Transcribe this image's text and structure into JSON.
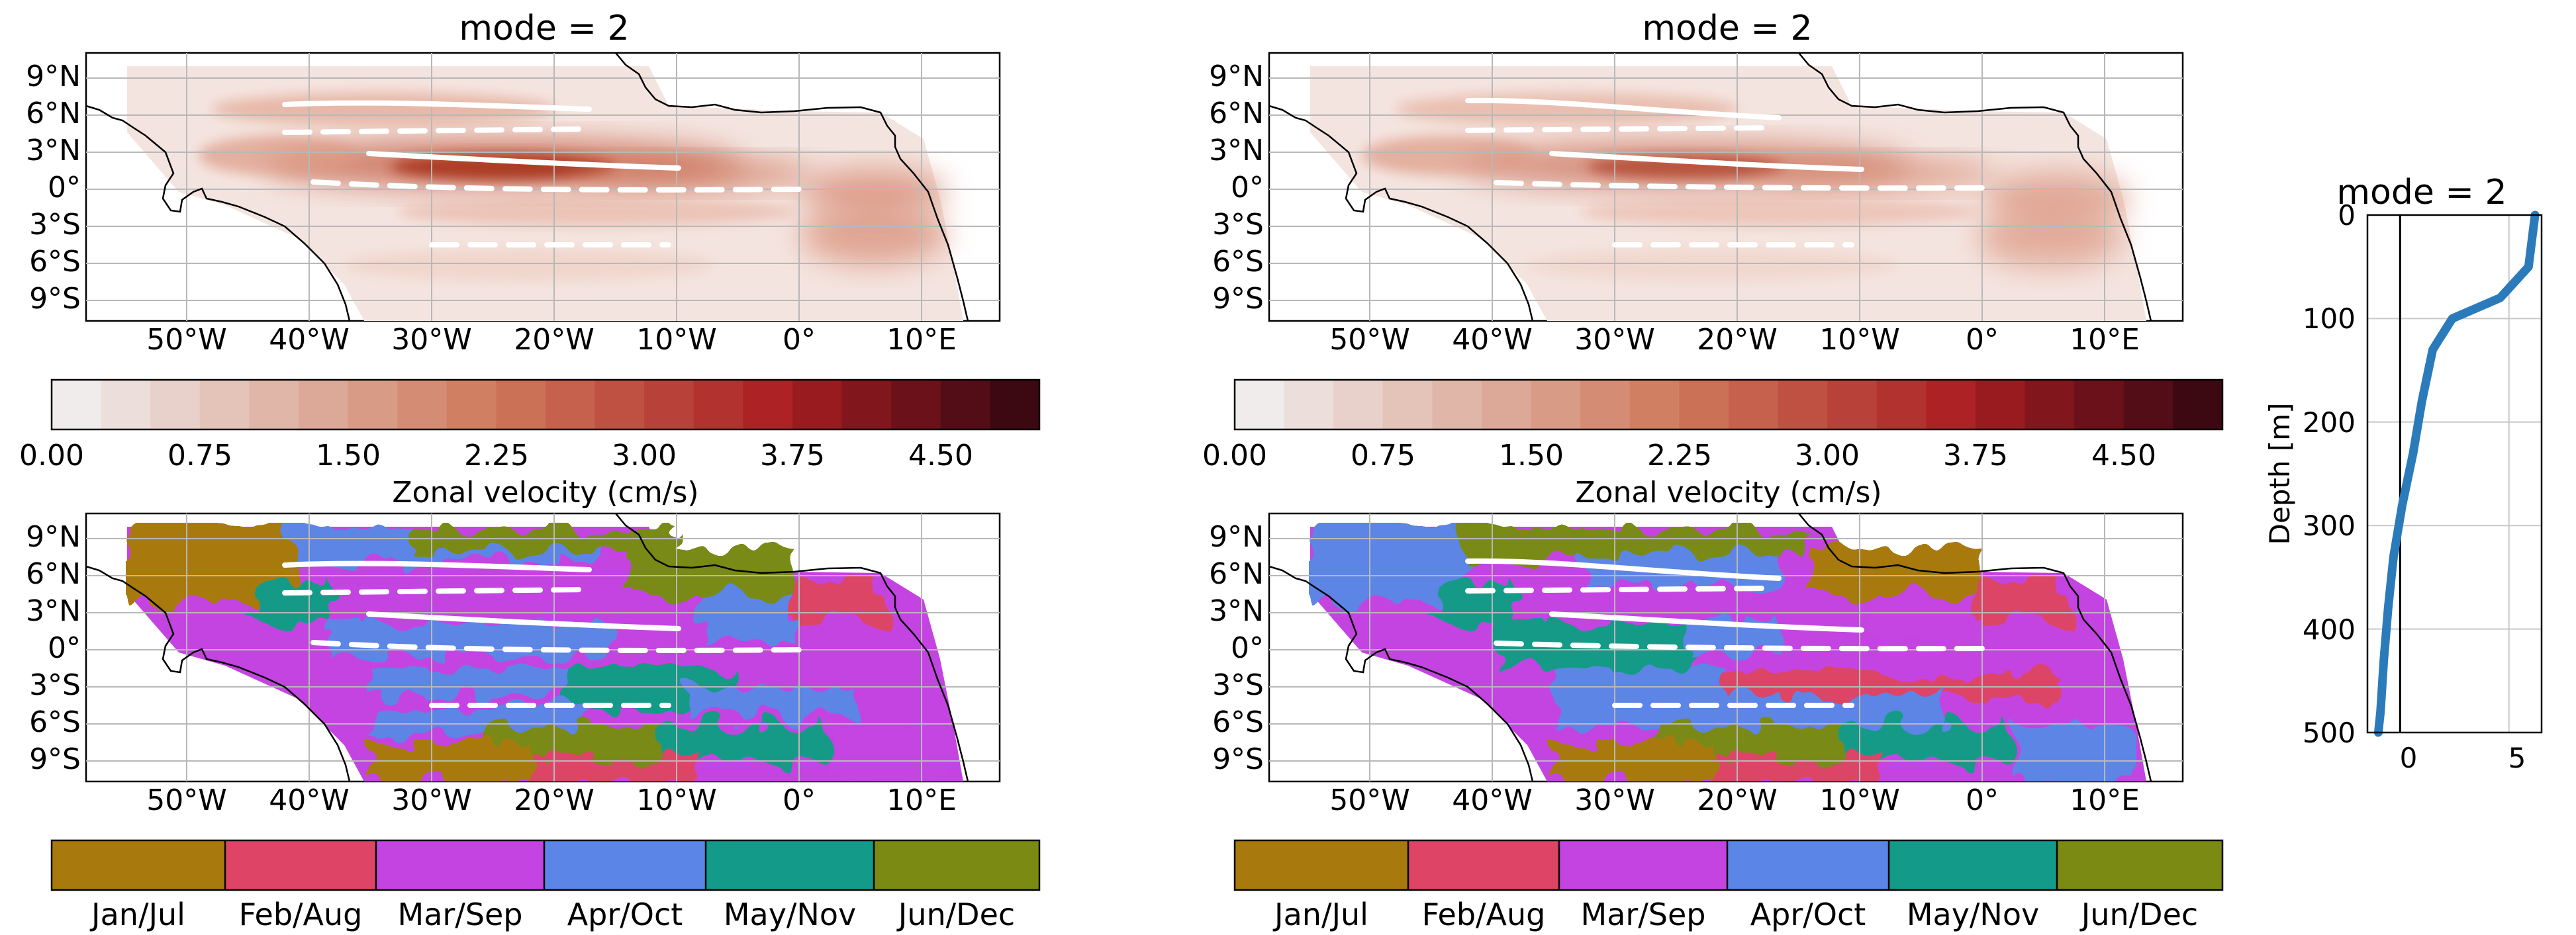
{
  "figure": {
    "map_panels": [
      {
        "title": "mode = 2",
        "kind": "amplitude"
      },
      {
        "title": "",
        "kind": "phase"
      },
      {
        "title": "mode = 2",
        "kind": "amplitude"
      },
      {
        "title": "",
        "kind": "phase"
      }
    ],
    "lat_ticks": [
      "9°N",
      "6°N",
      "3°N",
      "0°",
      "3°S",
      "6°S",
      "9°S"
    ],
    "lon_ticks": [
      "50°W",
      "40°W",
      "30°W",
      "20°W",
      "10°W",
      "0°",
      "10°E"
    ],
    "amplitude_colorbar": {
      "label": "Zonal velocity (cm/s)",
      "tick_labels": [
        "0.00",
        "0.75",
        "1.50",
        "2.25",
        "3.00",
        "3.75",
        "4.50"
      ],
      "levels": 20,
      "max": 5.0
    },
    "phase_colorbar": {
      "labels": [
        "Jan/Jul",
        "Feb/Aug",
        "Mar/Sep",
        "Apr/Oct",
        "May/Nov",
        "Jun/Dec"
      ],
      "colors": [
        "#a87a0d",
        "#dd4466",
        "#c444e2",
        "#5b85e6",
        "#139a88",
        "#7a8a12"
      ]
    },
    "profile": {
      "title": "mode = 2",
      "ylabel": "Depth [m]",
      "y_tick_labels": [
        "0",
        "100",
        "200",
        "300",
        "400",
        "500"
      ],
      "x_tick_labels": [
        "0",
        "5"
      ]
    }
  },
  "chart_data": [
    {
      "type": "heatmap",
      "title": "mode = 2",
      "description_units": "Zonal velocity (cm/s)",
      "lon_range": [
        -60,
        17
      ],
      "lat_range": [
        -11,
        11
      ],
      "colorbar_range": [
        0,
        5.0
      ],
      "max_region": {
        "lon": [
          -32,
          -12
        ],
        "lat": [
          0,
          3
        ],
        "value": 3.3
      }
    },
    {
      "type": "heatmap",
      "title": "mode = 2",
      "description_units": "Zonal velocity (cm/s)",
      "lon_range": [
        -60,
        17
      ],
      "lat_range": [
        -11,
        11
      ],
      "colorbar_range": [
        0,
        5.0
      ],
      "max_region": {
        "lon": [
          -30,
          -15
        ],
        "lat": [
          0,
          3
        ],
        "value": 2.8
      }
    },
    {
      "type": "line",
      "title": "mode = 2",
      "xlabel": "",
      "ylabel": "Depth [m]",
      "xlim": [
        -1.5,
        6.5
      ],
      "ylim": [
        500,
        0
      ],
      "x": [
        6.2,
        5.9,
        4.6,
        2.4,
        1.5,
        1.0,
        0.6,
        0.1,
        -0.3,
        -0.55,
        -0.75,
        -0.9,
        -1.0
      ],
      "y": [
        0,
        50,
        80,
        100,
        130,
        180,
        230,
        280,
        330,
        380,
        430,
        480,
        500
      ]
    }
  ]
}
